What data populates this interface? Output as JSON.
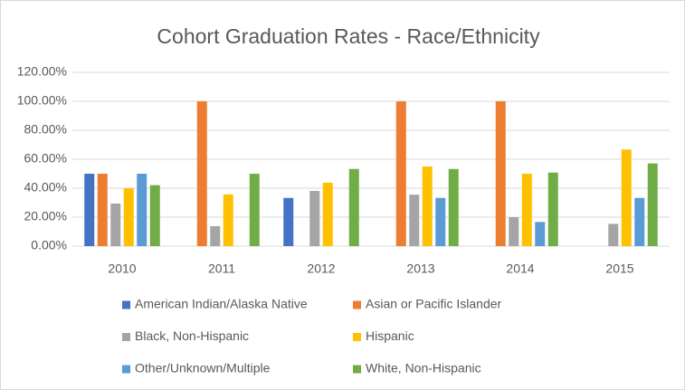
{
  "chart_data": {
    "type": "bar",
    "title": "Cohort Graduation Rates - Race/Ethnicity",
    "categories": [
      "2010",
      "2011",
      "2012",
      "2013",
      "2014",
      "2015"
    ],
    "series": [
      {
        "name": "American Indian/Alaska Native",
        "color": "#4472c4",
        "values": [
          50,
          null,
          33.3,
          null,
          null,
          null
        ]
      },
      {
        "name": "Asian or Pacific Islander",
        "color": "#ed7d31",
        "values": [
          50,
          100,
          null,
          100,
          100,
          null
        ]
      },
      {
        "name": "Black, Non-Hispanic",
        "color": "#a5a5a5",
        "values": [
          29.4,
          13.8,
          38.1,
          35.5,
          20,
          15.4
        ]
      },
      {
        "name": "Hispanic",
        "color": "#ffc000",
        "values": [
          40,
          35.7,
          43.8,
          55,
          50,
          66.7
        ]
      },
      {
        "name": "Other/Unknown/Multiple",
        "color": "#5b9bd5",
        "values": [
          50,
          null,
          null,
          33.3,
          16.7,
          33.3
        ]
      },
      {
        "name": "White, Non-Hispanic",
        "color": "#70ad47",
        "values": [
          42.1,
          50,
          53.3,
          53.3,
          50.8,
          57.1
        ]
      }
    ],
    "ylim": [
      0,
      120
    ],
    "yticks": [
      {
        "value": 0,
        "label": "0.00%"
      },
      {
        "value": 20,
        "label": "20.00%"
      },
      {
        "value": 40,
        "label": "40.00%"
      },
      {
        "value": 60,
        "label": "60.00%"
      },
      {
        "value": 80,
        "label": "80.00%"
      },
      {
        "value": 100,
        "label": "100.00%"
      },
      {
        "value": 120,
        "label": "120.00%"
      }
    ],
    "grid": true
  }
}
